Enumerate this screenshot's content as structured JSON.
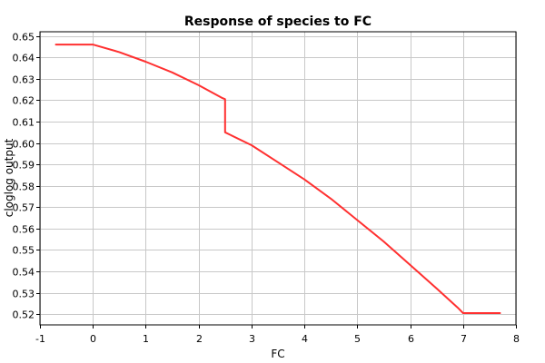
{
  "chart_data": {
    "type": "line",
    "title": "Response of species to FC",
    "xlabel": "FC",
    "ylabel": "cloglog output",
    "xlim": [
      -1,
      8
    ],
    "ylim": [
      0.515,
      0.652
    ],
    "xticks": [
      -1,
      0,
      1,
      2,
      3,
      4,
      5,
      6,
      7,
      8
    ],
    "yticks": [
      0.52,
      0.53,
      0.54,
      0.55,
      0.56,
      0.57,
      0.58,
      0.59,
      0.6,
      0.61,
      0.62,
      0.63,
      0.64,
      0.65
    ],
    "ytick_labels": [
      "0.52",
      "0.53",
      "0.54",
      "0.55",
      "0.56",
      "0.57",
      "0.58",
      "0.59",
      "0.60",
      "0.61",
      "0.62",
      "0.63",
      "0.64",
      "0.65"
    ],
    "grid": true,
    "legend": "none",
    "series": [
      {
        "color": "#ff3030",
        "x": [
          -0.7,
          0.0,
          0.5,
          1.0,
          1.5,
          2.0,
          2.45,
          2.5,
          2.5,
          3.0,
          3.5,
          4.0,
          4.5,
          5.0,
          5.5,
          6.0,
          6.5,
          6.9,
          7.0,
          7.7
        ],
        "y": [
          0.646,
          0.646,
          0.6425,
          0.638,
          0.633,
          0.627,
          0.621,
          0.6205,
          0.605,
          0.599,
          0.591,
          0.583,
          0.574,
          0.564,
          0.554,
          0.543,
          0.532,
          0.523,
          0.5205,
          0.5205
        ]
      }
    ]
  }
}
